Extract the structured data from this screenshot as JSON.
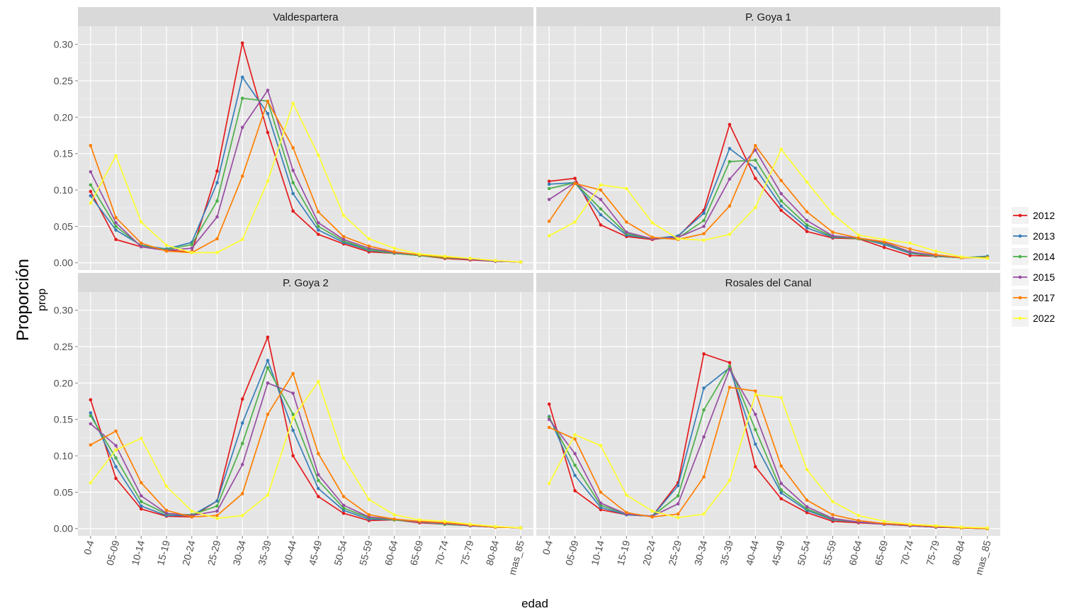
{
  "chart_data": {
    "type": "line",
    "ylabel": "Proporción",
    "ylabel_sub": "prop",
    "xlabel": "edad",
    "ylim": [
      -0.01,
      0.325
    ],
    "yticks": [
      "0.00",
      "0.05",
      "0.10",
      "0.15",
      "0.20",
      "0.25",
      "0.30"
    ],
    "grid": true,
    "legend_position": "right",
    "categories": [
      "0-4",
      "05-09",
      "10-14",
      "15-19",
      "20-24",
      "25-29",
      "30-34",
      "35-39",
      "40-44",
      "45-49",
      "50-54",
      "55-59",
      "60-64",
      "65-69",
      "70-74",
      "75-79",
      "80-84",
      "mas_85"
    ],
    "colors": {
      "2012": "#E41A1C",
      "2013": "#377EB8",
      "2014": "#4DAF4A",
      "2015": "#984EA3",
      "2017": "#FF7F00",
      "2022": "#FFFF33"
    },
    "legend": [
      "2012",
      "2013",
      "2014",
      "2015",
      "2017",
      "2022"
    ],
    "panels": [
      {
        "title": "Valdespartera",
        "series": [
          {
            "name": "2012",
            "values": [
              0.098,
              0.032,
              0.022,
              0.017,
              0.015,
              0.126,
              0.302,
              0.179,
              0.071,
              0.039,
              0.026,
              0.015,
              0.013,
              0.01,
              0.006,
              0.004,
              0.002,
              0.001
            ]
          },
          {
            "name": "2013",
            "values": [
              0.092,
              0.045,
              0.024,
              0.019,
              0.028,
              0.11,
              0.255,
              0.205,
              0.095,
              0.045,
              0.028,
              0.017,
              0.013,
              0.01,
              0.007,
              0.005,
              0.002,
              0.001
            ]
          },
          {
            "name": "2014",
            "values": [
              0.107,
              0.05,
              0.023,
              0.018,
              0.025,
              0.085,
              0.226,
              0.222,
              0.11,
              0.05,
              0.03,
              0.018,
              0.013,
              0.01,
              0.007,
              0.005,
              0.002,
              0.001
            ]
          },
          {
            "name": "2015",
            "values": [
              0.125,
              0.055,
              0.022,
              0.017,
              0.02,
              0.063,
              0.186,
              0.237,
              0.127,
              0.055,
              0.032,
              0.02,
              0.014,
              0.011,
              0.008,
              0.005,
              0.002,
              0.001
            ]
          },
          {
            "name": "2017",
            "values": [
              0.161,
              0.062,
              0.027,
              0.016,
              0.014,
              0.033,
              0.119,
              0.222,
              0.158,
              0.07,
              0.036,
              0.023,
              0.015,
              0.011,
              0.008,
              0.006,
              0.003,
              0.001
            ]
          },
          {
            "name": "2022",
            "values": [
              0.082,
              0.147,
              0.056,
              0.024,
              0.014,
              0.014,
              0.032,
              0.112,
              0.219,
              0.148,
              0.065,
              0.033,
              0.02,
              0.012,
              0.009,
              0.006,
              0.003,
              0.001
            ]
          }
        ]
      },
      {
        "title": "P. Goya 1",
        "series": [
          {
            "name": "2012",
            "values": [
              0.112,
              0.116,
              0.052,
              0.036,
              0.032,
              0.036,
              0.072,
              0.19,
              0.116,
              0.072,
              0.043,
              0.034,
              0.033,
              0.021,
              0.01,
              0.009,
              0.007,
              0.008
            ]
          },
          {
            "name": "2013",
            "values": [
              0.108,
              0.11,
              0.066,
              0.038,
              0.033,
              0.037,
              0.068,
              0.157,
              0.13,
              0.078,
              0.048,
              0.035,
              0.034,
              0.025,
              0.013,
              0.009,
              0.007,
              0.009
            ]
          },
          {
            "name": "2014",
            "values": [
              0.102,
              0.11,
              0.074,
              0.04,
              0.033,
              0.034,
              0.058,
              0.139,
              0.141,
              0.085,
              0.052,
              0.036,
              0.033,
              0.027,
              0.014,
              0.009,
              0.007,
              0.008
            ]
          },
          {
            "name": "2015",
            "values": [
              0.087,
              0.11,
              0.087,
              0.042,
              0.033,
              0.035,
              0.05,
              0.115,
              0.155,
              0.095,
              0.058,
              0.037,
              0.034,
              0.028,
              0.015,
              0.01,
              0.007,
              0.007
            ]
          },
          {
            "name": "2017",
            "values": [
              0.057,
              0.109,
              0.1,
              0.056,
              0.035,
              0.032,
              0.04,
              0.078,
              0.161,
              0.113,
              0.07,
              0.042,
              0.034,
              0.029,
              0.019,
              0.011,
              0.007,
              0.007
            ]
          },
          {
            "name": "2022",
            "values": [
              0.037,
              0.056,
              0.107,
              0.102,
              0.055,
              0.033,
              0.031,
              0.039,
              0.076,
              0.156,
              0.111,
              0.067,
              0.038,
              0.032,
              0.027,
              0.016,
              0.008,
              0.006
            ]
          }
        ]
      },
      {
        "title": "P. Goya 2",
        "series": [
          {
            "name": "2012",
            "values": [
              0.177,
              0.069,
              0.027,
              0.017,
              0.016,
              0.038,
              0.178,
              0.263,
              0.1,
              0.044,
              0.021,
              0.011,
              0.012,
              0.008,
              0.006,
              0.004,
              0.002,
              0.001
            ]
          },
          {
            "name": "2013",
            "values": [
              0.159,
              0.085,
              0.031,
              0.018,
              0.018,
              0.038,
              0.145,
              0.231,
              0.135,
              0.055,
              0.025,
              0.013,
              0.012,
              0.009,
              0.006,
              0.004,
              0.002,
              0.001
            ]
          },
          {
            "name": "2014",
            "values": [
              0.155,
              0.097,
              0.037,
              0.02,
              0.019,
              0.031,
              0.117,
              0.221,
              0.157,
              0.066,
              0.028,
              0.015,
              0.012,
              0.009,
              0.006,
              0.004,
              0.002,
              0.001
            ]
          },
          {
            "name": "2015",
            "values": [
              0.144,
              0.114,
              0.045,
              0.021,
              0.018,
              0.024,
              0.088,
              0.2,
              0.186,
              0.074,
              0.032,
              0.016,
              0.013,
              0.009,
              0.007,
              0.004,
              0.002,
              0.001
            ]
          },
          {
            "name": "2017",
            "values": [
              0.115,
              0.134,
              0.063,
              0.025,
              0.016,
              0.018,
              0.048,
              0.157,
              0.213,
              0.103,
              0.044,
              0.019,
              0.013,
              0.01,
              0.008,
              0.005,
              0.002,
              0.001
            ]
          },
          {
            "name": "2022",
            "values": [
              0.063,
              0.108,
              0.124,
              0.058,
              0.024,
              0.014,
              0.018,
              0.046,
              0.152,
              0.202,
              0.097,
              0.04,
              0.019,
              0.012,
              0.01,
              0.006,
              0.003,
              0.001
            ]
          }
        ]
      },
      {
        "title": "Rosales del Canal",
        "series": [
          {
            "name": "2012",
            "values": [
              0.171,
              0.052,
              0.026,
              0.019,
              0.017,
              0.063,
              0.24,
              0.228,
              0.085,
              0.041,
              0.022,
              0.01,
              0.008,
              0.006,
              0.004,
              0.002,
              0.001,
              0.0
            ]
          },
          {
            "name": "2013",
            "values": [
              0.154,
              0.073,
              0.029,
              0.019,
              0.017,
              0.059,
              0.193,
              0.221,
              0.116,
              0.049,
              0.025,
              0.012,
              0.009,
              0.006,
              0.004,
              0.002,
              0.001,
              0.0
            ]
          },
          {
            "name": "2014",
            "values": [
              0.153,
              0.087,
              0.032,
              0.02,
              0.017,
              0.045,
              0.163,
              0.223,
              0.136,
              0.053,
              0.027,
              0.013,
              0.009,
              0.006,
              0.004,
              0.002,
              0.001,
              0.0
            ]
          },
          {
            "name": "2015",
            "values": [
              0.15,
              0.103,
              0.035,
              0.02,
              0.017,
              0.034,
              0.126,
              0.219,
              0.157,
              0.062,
              0.03,
              0.014,
              0.009,
              0.006,
              0.004,
              0.002,
              0.001,
              0.0
            ]
          },
          {
            "name": "2017",
            "values": [
              0.139,
              0.123,
              0.05,
              0.022,
              0.016,
              0.02,
              0.071,
              0.194,
              0.189,
              0.086,
              0.039,
              0.019,
              0.011,
              0.007,
              0.005,
              0.003,
              0.001,
              0.0
            ]
          },
          {
            "name": "2022",
            "values": [
              0.062,
              0.129,
              0.114,
              0.046,
              0.024,
              0.015,
              0.02,
              0.066,
              0.184,
              0.18,
              0.081,
              0.037,
              0.018,
              0.01,
              0.006,
              0.004,
              0.002,
              0.001
            ]
          }
        ]
      }
    ]
  }
}
